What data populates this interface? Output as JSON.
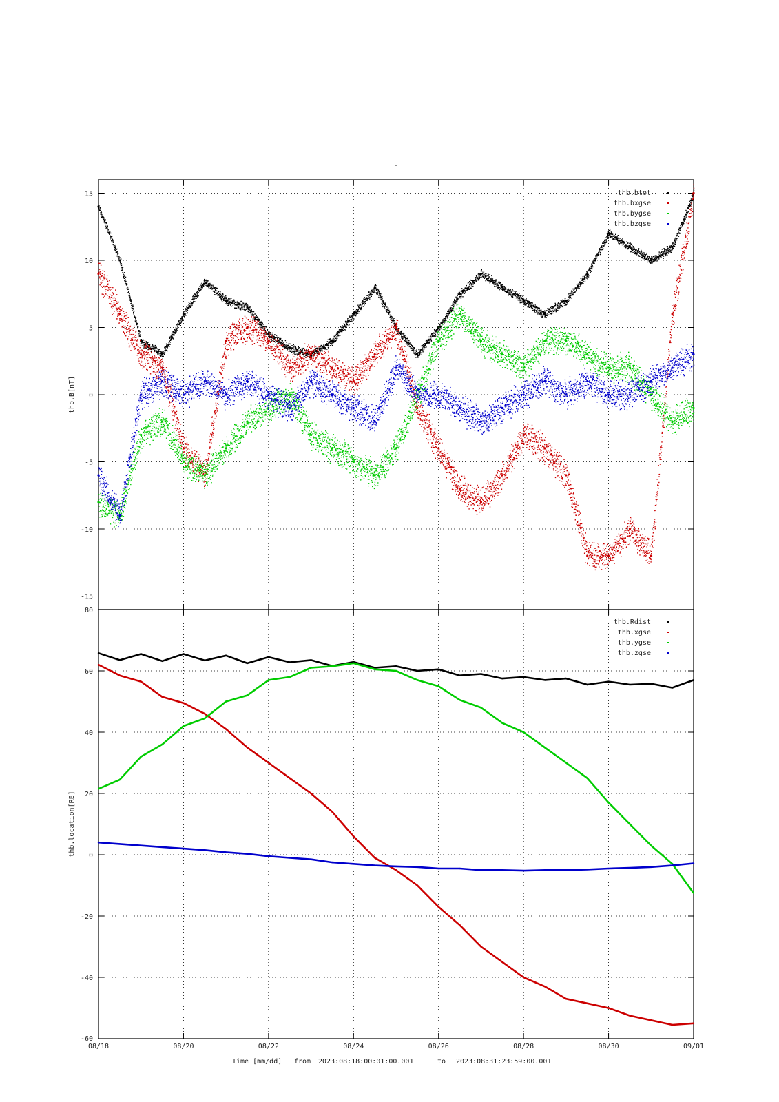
{
  "figure": {
    "title": "-",
    "footer": {
      "label": "Time [mm/dd]",
      "from_label": "from",
      "from": "2023:08:18:00:01:00.001",
      "to_label": "to",
      "to": "2023:08:31:23:59:00.001"
    },
    "time_start": "2023-08-18",
    "time_end": "2023-09-01"
  },
  "chart_data": [
    {
      "type": "scatter",
      "ylabel": "thb.B[nT]",
      "xlabel": "Time [mm/dd]",
      "xlim": [
        "2023-08-18",
        "2023-09-01"
      ],
      "ylim": [
        -16,
        16
      ],
      "yticks": [
        -15,
        -10,
        -5,
        0,
        5,
        10,
        15
      ],
      "xticks": [
        "08/18",
        "08/20",
        "08/22",
        "08/24",
        "08/26",
        "08/28",
        "08/30",
        "09/01"
      ],
      "grid": true,
      "legend_position": "top-right",
      "x": [
        "2023-08-18",
        "2023-08-18T12:00",
        "2023-08-19",
        "2023-08-19T12:00",
        "2023-08-20",
        "2023-08-20T12:00",
        "2023-08-21",
        "2023-08-21T12:00",
        "2023-08-22",
        "2023-08-22T12:00",
        "2023-08-23",
        "2023-08-23T12:00",
        "2023-08-24",
        "2023-08-24T12:00",
        "2023-08-25",
        "2023-08-25T12:00",
        "2023-08-26",
        "2023-08-26T12:00",
        "2023-08-27",
        "2023-08-27T12:00",
        "2023-08-28",
        "2023-08-28T12:00",
        "2023-08-29",
        "2023-08-29T12:00",
        "2023-08-30",
        "2023-08-30T12:00",
        "2023-08-31",
        "2023-08-31T12:00",
        "2023-09-01"
      ],
      "series": [
        {
          "name": "thb.btot",
          "color": "#000000",
          "values": [
            14,
            10,
            4,
            3,
            6,
            8.5,
            7,
            6.5,
            4.5,
            3.5,
            3,
            4,
            6,
            8,
            5,
            3,
            5,
            7.5,
            9,
            8,
            7,
            6,
            7,
            9,
            12,
            11,
            10,
            11,
            15
          ]
        },
        {
          "name": "thb.bxgse",
          "color": "#cc0000",
          "values": [
            9,
            6,
            3,
            2,
            -4,
            -6,
            4,
            5,
            4,
            2,
            3,
            2,
            1,
            3,
            5,
            -1,
            -4,
            -7,
            -8,
            -6,
            -3,
            -4,
            -6,
            -12,
            -12,
            -10,
            -12,
            6,
            15
          ]
        },
        {
          "name": "thb.bygse",
          "color": "#00cc00",
          "values": [
            -8,
            -9,
            -3,
            -2,
            -5,
            -6,
            -4,
            -2,
            -1,
            0,
            -3,
            -4,
            -5,
            -6,
            -4,
            0,
            4,
            6,
            4,
            3,
            2,
            4,
            4,
            3,
            2,
            2,
            0,
            -2,
            -1
          ]
        },
        {
          "name": "thb.bzgse",
          "color": "#0000cc",
          "values": [
            -6,
            -9,
            0,
            1,
            0,
            1,
            0,
            1,
            0,
            -1,
            1,
            0,
            -1,
            -2,
            2,
            0,
            0,
            -1,
            -2,
            -1,
            0,
            1,
            0,
            1,
            0,
            0,
            1,
            2,
            3
          ]
        }
      ]
    },
    {
      "type": "line",
      "ylabel": "thb.location[RE]",
      "xlabel": "Time [mm/dd]",
      "xlim": [
        "2023-08-18",
        "2023-09-01"
      ],
      "ylim": [
        -60,
        80
      ],
      "yticks": [
        -60,
        -40,
        -20,
        0,
        20,
        40,
        60,
        80
      ],
      "xticks": [
        "08/18",
        "08/20",
        "08/22",
        "08/24",
        "08/26",
        "08/28",
        "08/30",
        "09/01"
      ],
      "grid": true,
      "legend_position": "top-right",
      "x": [
        "2023-08-18",
        "2023-08-18T12:00",
        "2023-08-19",
        "2023-08-19T12:00",
        "2023-08-20",
        "2023-08-20T12:00",
        "2023-08-21",
        "2023-08-21T12:00",
        "2023-08-22",
        "2023-08-22T12:00",
        "2023-08-23",
        "2023-08-23T12:00",
        "2023-08-24",
        "2023-08-24T12:00",
        "2023-08-25",
        "2023-08-25T12:00",
        "2023-08-26",
        "2023-08-26T12:00",
        "2023-08-27",
        "2023-08-27T12:00",
        "2023-08-28",
        "2023-08-28T12:00",
        "2023-08-29",
        "2023-08-29T12:00",
        "2023-08-30",
        "2023-08-30T12:00",
        "2023-08-31",
        "2023-08-31T12:00",
        "2023-09-01"
      ],
      "series": [
        {
          "name": "thb.Rdist",
          "color": "#000000",
          "values": [
            65.8,
            63.5,
            65.5,
            63.2,
            65.5,
            63.4,
            65,
            62.5,
            64.5,
            62.8,
            63.5,
            61.6,
            62.9,
            61,
            61.5,
            60,
            60.5,
            58.5,
            59,
            57.5,
            58,
            57,
            57.5,
            55.5,
            56.5,
            55.5,
            55.8,
            54.5,
            57
          ]
        },
        {
          "name": "thb.xgse",
          "color": "#cc0000",
          "values": [
            62,
            58.5,
            56.5,
            51.5,
            49.5,
            46,
            41,
            35,
            30,
            25,
            20,
            14,
            6,
            -1,
            -5,
            -10,
            -17,
            -23,
            -30,
            -35,
            -40,
            -43,
            -47,
            -48.5,
            -50,
            -52.5,
            -54,
            -55.5,
            -55
          ]
        },
        {
          "name": "thb.ygse",
          "color": "#00cc00",
          "values": [
            21.5,
            24.5,
            32,
            36,
            42,
            44.5,
            50,
            52,
            57,
            58,
            61,
            61.5,
            62.5,
            60.5,
            60,
            57,
            55,
            50.5,
            48,
            43,
            40,
            35,
            30,
            25,
            17,
            10,
            3,
            -3,
            -12.5
          ]
        },
        {
          "name": "thb.zgse",
          "color": "#0000cc",
          "values": [
            4,
            3.5,
            3,
            2.5,
            2,
            1.5,
            0.8,
            0.3,
            -0.5,
            -1,
            -1.5,
            -2.5,
            -3,
            -3.5,
            -3.8,
            -4,
            -4.5,
            -4.5,
            -5,
            -5,
            -5.2,
            -5,
            -5,
            -4.8,
            -4.5,
            -4.3,
            -4,
            -3.5,
            -2.8
          ]
        }
      ]
    }
  ]
}
